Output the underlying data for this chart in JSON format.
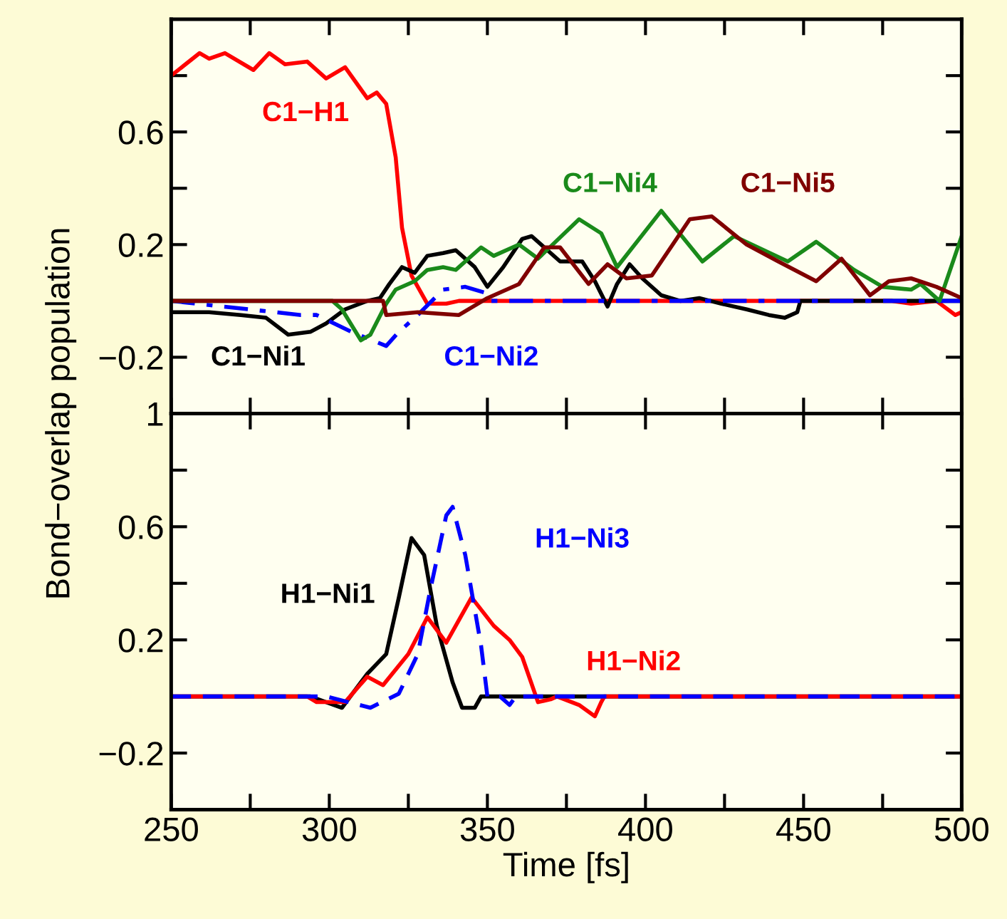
{
  "chart_data": [
    {
      "type": "line",
      "ylabel": "Bond−overlap population",
      "xlim": [
        250,
        500
      ],
      "xticks": [
        {
          "value": 250,
          "label": null
        },
        {
          "value": 275,
          "label": null
        },
        {
          "value": 300,
          "label": null
        },
        {
          "value": 325,
          "label": null
        },
        {
          "value": 350,
          "label": null
        },
        {
          "value": 375,
          "label": null
        },
        {
          "value": 400,
          "label": null
        },
        {
          "value": 425,
          "label": null
        },
        {
          "value": 450,
          "label": null
        },
        {
          "value": 475,
          "label": null
        },
        {
          "value": 500,
          "label": null
        }
      ],
      "ylim": [
        -0.4,
        1.0
      ],
      "yticks": [
        {
          "value": -0.2,
          "label": "−0.2"
        },
        {
          "value": 0,
          "label": null
        },
        {
          "value": 0.2,
          "label": "0.2"
        },
        {
          "value": 0.4,
          "label": null
        },
        {
          "value": 0.6,
          "label": "0.6"
        },
        {
          "value": 0.8,
          "label": null
        }
      ],
      "tick_labels": "y",
      "grid": false,
      "legend": false,
      "series": [
        {
          "name": "C1−H1",
          "color": "#ff0000",
          "line_style": "solid",
          "x": [
            250,
            259,
            262,
            267,
            276,
            281,
            286,
            293,
            299,
            305,
            312,
            315,
            318,
            321,
            323,
            326,
            331,
            337,
            341,
            478,
            484,
            492,
            498,
            500
          ],
          "values": [
            0.8,
            0.88,
            0.86,
            0.88,
            0.82,
            0.88,
            0.84,
            0.85,
            0.79,
            0.83,
            0.72,
            0.74,
            0.7,
            0.51,
            0.26,
            0.09,
            -0.01,
            -0.01,
            0,
            0,
            -0.01,
            0,
            -0.05,
            -0.04
          ]
        },
        {
          "name": "C1−Ni1",
          "color": "#000000",
          "line_style": "solid",
          "x": [
            250,
            262,
            272,
            280,
            287,
            294,
            299,
            305,
            312,
            316,
            319,
            323,
            327,
            331,
            336,
            340,
            346,
            350,
            355,
            361,
            364,
            369,
            373,
            380,
            384,
            388,
            391,
            395,
            399,
            405,
            411,
            417,
            424,
            432,
            439,
            444,
            448,
            449,
            500
          ],
          "values": [
            -0.04,
            -0.04,
            -0.05,
            -0.06,
            -0.12,
            -0.11,
            -0.08,
            -0.03,
            0,
            0.01,
            0.06,
            0.12,
            0.1,
            0.16,
            0.17,
            0.18,
            0.12,
            0.05,
            0.12,
            0.22,
            0.23,
            0.18,
            0.14,
            0.14,
            0.07,
            -0.02,
            0.06,
            0.13,
            0.08,
            0.02,
            0,
            0.01,
            -0.01,
            -0.03,
            -0.05,
            -0.06,
            -0.04,
            0,
            0
          ]
        },
        {
          "name": "C1−Ni2",
          "color": "#0000ff",
          "line_style": "dashdot",
          "x": [
            250,
            291,
            296,
            307,
            318,
            322,
            328,
            336,
            343,
            349,
            351,
            500
          ],
          "values": [
            0,
            -0.05,
            -0.05,
            -0.11,
            -0.16,
            -0.11,
            -0.05,
            0.04,
            0.05,
            0.03,
            0,
            0
          ]
        },
        {
          "name": "C1−Ni4",
          "color": "#1a8a1a",
          "line_style": "solid",
          "x": [
            250,
            301,
            304,
            310,
            313,
            318,
            321,
            327,
            331,
            336,
            340,
            348,
            352,
            360,
            366,
            379,
            386,
            391,
            405,
            418,
            428,
            445,
            454,
            466,
            475,
            484,
            487,
            493,
            500
          ],
          "values": [
            0,
            0,
            -0.03,
            -0.14,
            -0.12,
            -0.01,
            0.04,
            0.07,
            0.11,
            0.12,
            0.11,
            0.19,
            0.16,
            0.2,
            0.15,
            0.29,
            0.24,
            0.12,
            0.32,
            0.14,
            0.23,
            0.14,
            0.21,
            0.11,
            0.05,
            0.04,
            0.06,
            0,
            0.23
          ]
        },
        {
          "name": "C1−Ni5",
          "color": "#800000",
          "line_style": "solid",
          "x": [
            250,
            317,
            318,
            328,
            341,
            350,
            360,
            368,
            373,
            382,
            388,
            394,
            402,
            414,
            421,
            432,
            442,
            454,
            462,
            471,
            477,
            484,
            492,
            500
          ],
          "values": [
            0,
            0,
            -0.05,
            -0.04,
            -0.05,
            0.01,
            0.06,
            0.19,
            0.19,
            0.06,
            0.13,
            0.08,
            0.09,
            0.29,
            0.3,
            0.2,
            0.14,
            0.07,
            0.15,
            0.02,
            0.07,
            0.08,
            0.05,
            0.01
          ]
        }
      ]
    },
    {
      "type": "line",
      "xlabel": "Time [fs]",
      "xlim": [
        250,
        500
      ],
      "xticks": [
        250,
        {
          "value": 275,
          "label": null
        },
        300,
        {
          "value": 325,
          "label": null
        },
        350,
        {
          "value": 375,
          "label": null
        },
        400,
        {
          "value": 425,
          "label": null
        },
        450,
        {
          "value": 475,
          "label": null
        },
        500
      ],
      "ylim": [
        -0.4,
        1.0
      ],
      "yticks": [
        {
          "value": -0.2,
          "label": "−0.2"
        },
        {
          "value": 0,
          "label": null
        },
        {
          "value": 0.2,
          "label": "0.2"
        },
        {
          "value": 0.4,
          "label": null
        },
        {
          "value": 0.6,
          "label": "0.6"
        },
        {
          "value": 0.8,
          "label": null
        },
        1
      ],
      "grid": false,
      "legend": false,
      "series": [
        {
          "name": "H1−Ni1",
          "color": "#000000",
          "line_style": "solid",
          "x": [
            250,
            294,
            304,
            312,
            318,
            322,
            326,
            330,
            334,
            339,
            342,
            346,
            348,
            500
          ],
          "values": [
            0,
            0,
            -0.04,
            0.08,
            0.15,
            0.35,
            0.56,
            0.5,
            0.25,
            0.05,
            -0.04,
            -0.04,
            0,
            0
          ]
        },
        {
          "name": "H1−Ni2",
          "color": "#ff0000",
          "line_style": "solid",
          "x": [
            250,
            293,
            296,
            305,
            312,
            317,
            325,
            331,
            337,
            345,
            352,
            357,
            361,
            366,
            370,
            372,
            379,
            384,
            386,
            387,
            500
          ],
          "values": [
            0,
            0,
            -0.02,
            -0.02,
            0.07,
            0.04,
            0.15,
            0.28,
            0.19,
            0.35,
            0.25,
            0.2,
            0.14,
            -0.02,
            -0.01,
            0,
            -0.03,
            -0.07,
            -0.02,
            0,
            0
          ]
        },
        {
          "name": "H1−Ni3",
          "color": "#0000ff",
          "line_style": "dashed",
          "x": [
            250,
            299,
            313,
            322,
            328,
            332,
            337,
            339,
            343,
            348,
            350,
            354,
            357,
            359,
            500
          ],
          "values": [
            0,
            0,
            -0.04,
            0.01,
            0.15,
            0.38,
            0.64,
            0.67,
            0.5,
            0.18,
            0,
            0,
            -0.03,
            0,
            0
          ]
        }
      ]
    }
  ]
}
